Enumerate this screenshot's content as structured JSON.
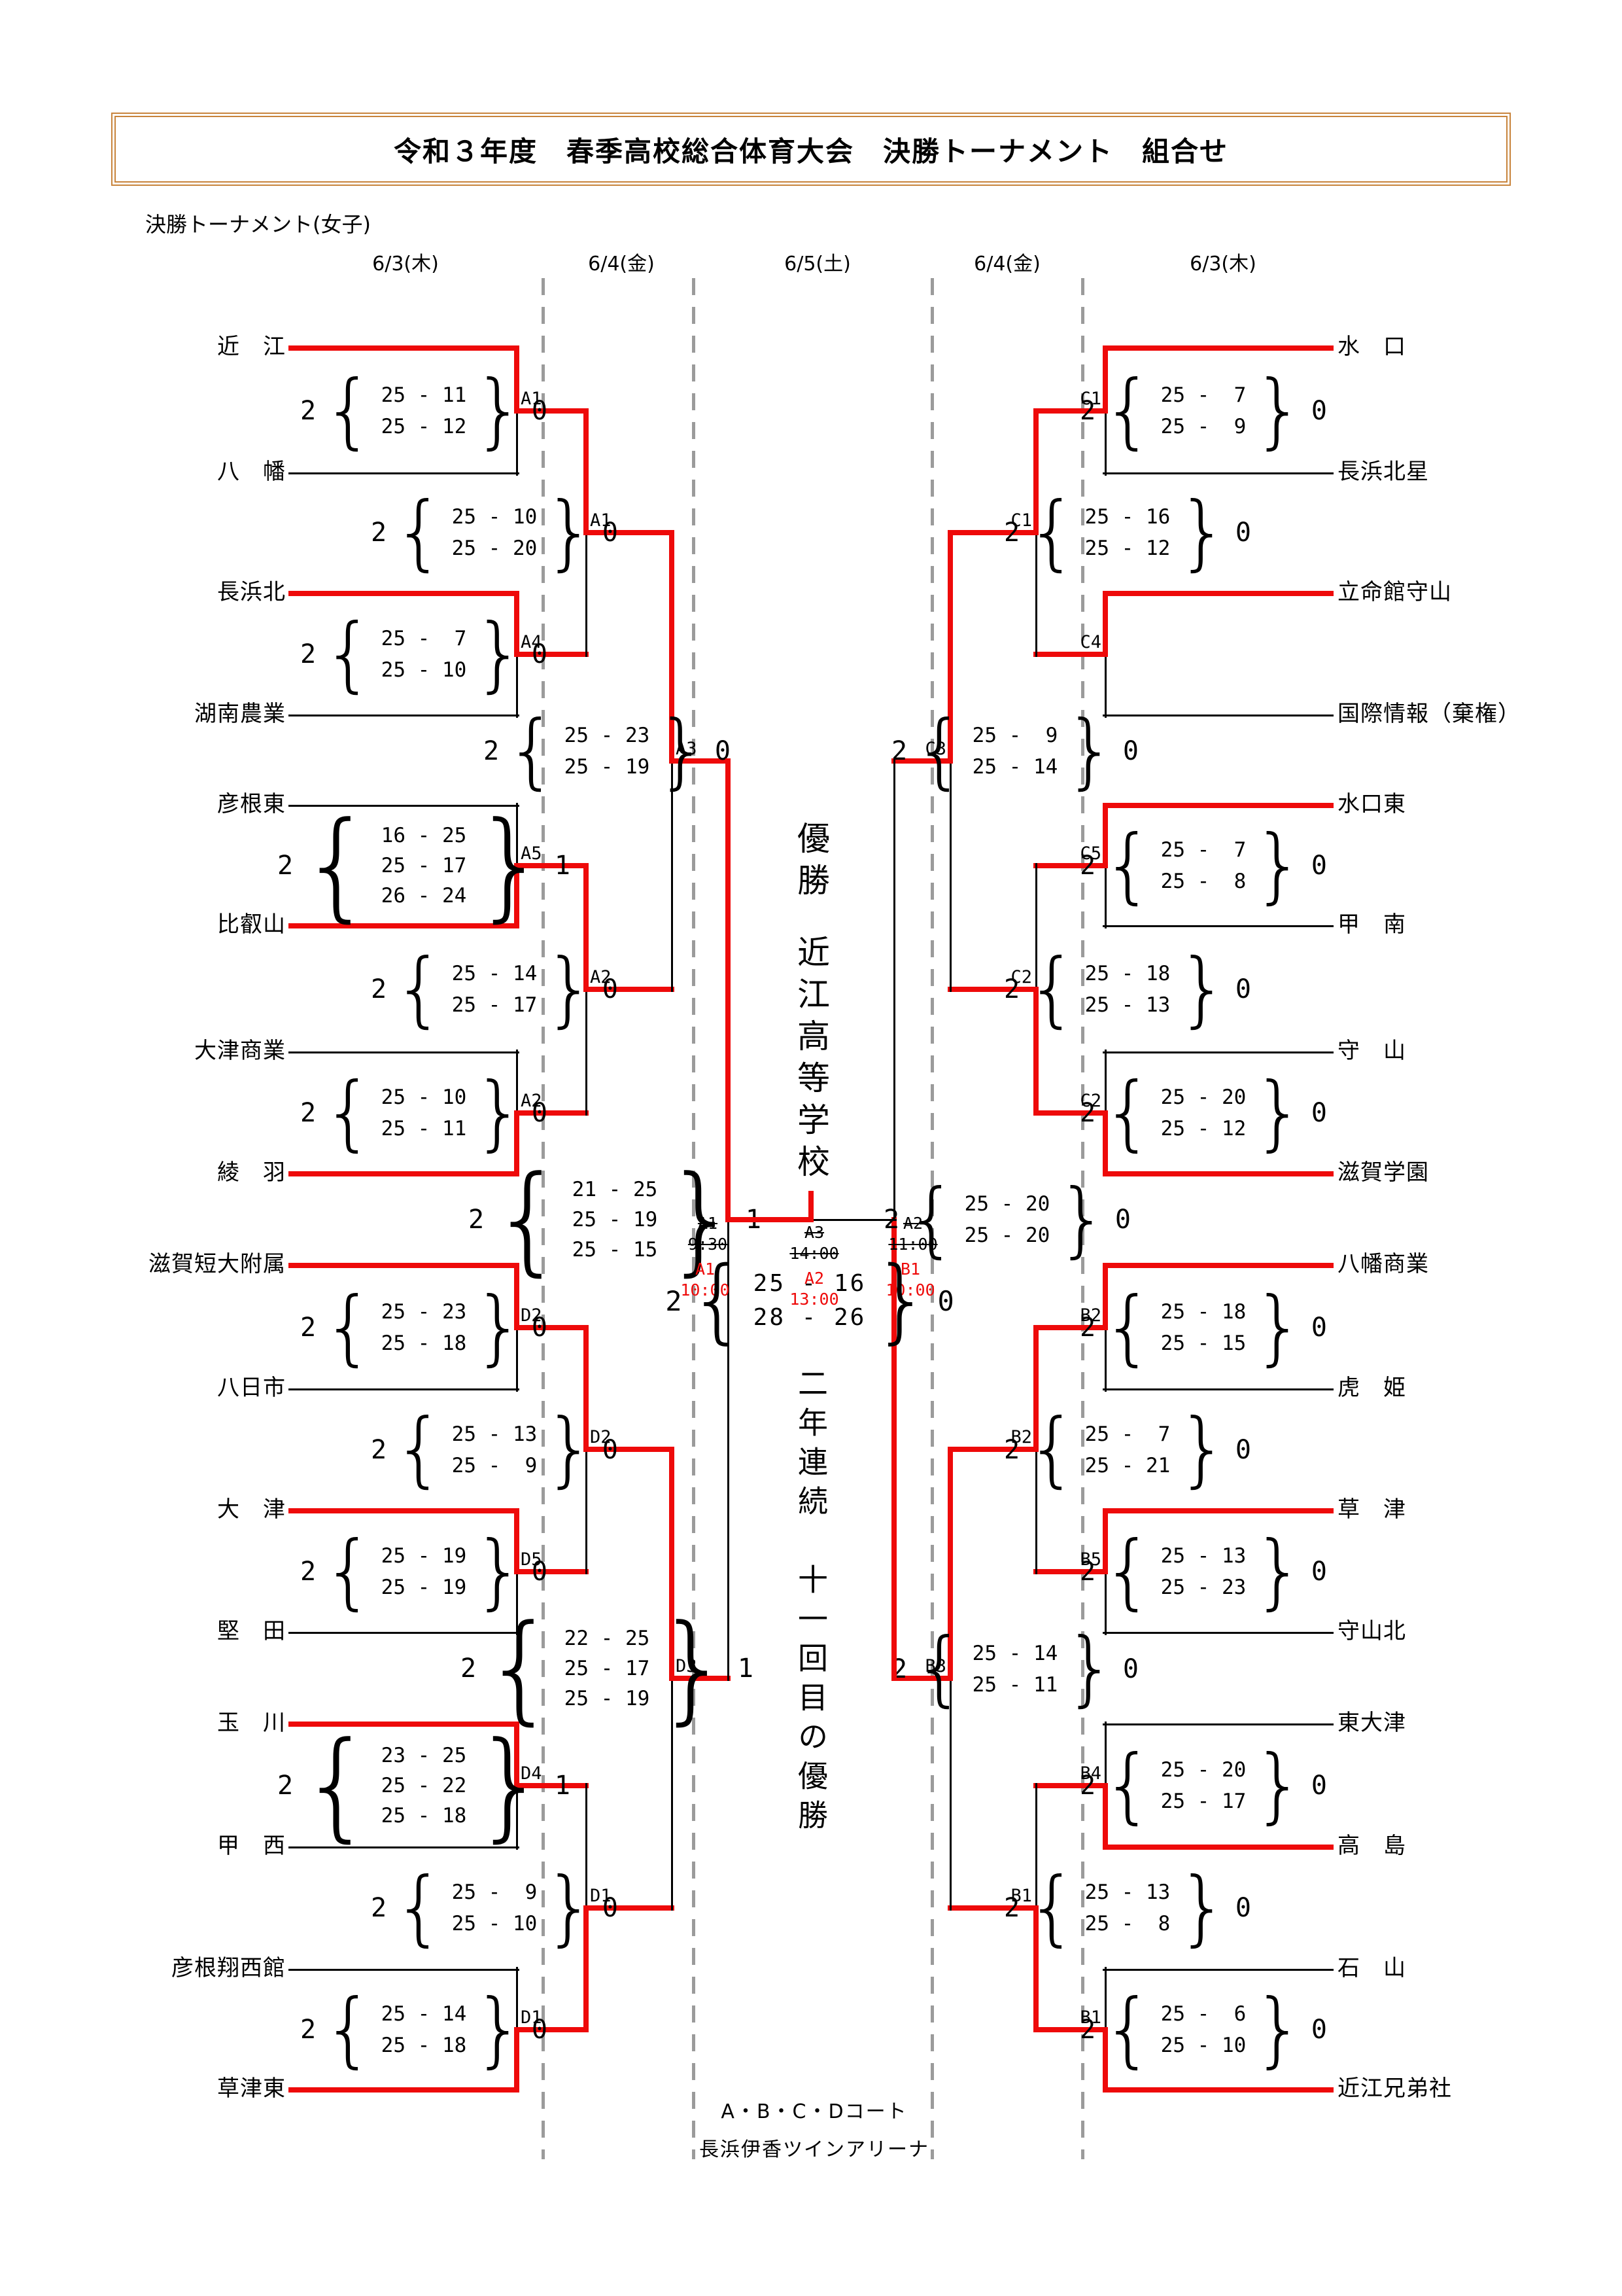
{
  "header": {
    "title": "令和３年度　春季高校総合体育大会　決勝トーナメント　組合せ",
    "subtitle": "決勝トーナメント(女子)",
    "dates": [
      "6/3(木)",
      "6/4(金)",
      "6/5(土)",
      "6/4(金)",
      "6/3(木)"
    ]
  },
  "center": {
    "champion_label": "優勝",
    "champion_name": "近江高等学校",
    "note": "二年連続　十一回目の優勝"
  },
  "footer": {
    "courts": "A・B・C・Dコート",
    "arena": "長浜伊香ツインアリーナ"
  },
  "colors": {
    "win_path": "#ee0a0a",
    "line": "#000000",
    "dashed": "#9b9b9b",
    "title_border": "#c8843c"
  },
  "bracket": {
    "left": {
      "teams": [
        "近　江",
        "八　幡",
        "長浜北",
        "湖南農業",
        "彦根東",
        "比叡山",
        "大津商業",
        "綾　羽",
        "滋賀短大附属",
        "八日市",
        "大　津",
        "堅　田",
        "玉　川",
        "甲　西",
        "彦根翔西館",
        "草津東"
      ],
      "r1": [
        {
          "code": "A1",
          "sets": [
            "2",
            "0"
          ],
          "rows": [
            "25 - 11",
            "25 - 12"
          ],
          "winner": "top"
        },
        {
          "code": "A4",
          "sets": [
            "2",
            "0"
          ],
          "rows": [
            "25 -  7",
            "25 - 10"
          ],
          "winner": "top"
        },
        {
          "code": "A5",
          "sets": [
            "2",
            "1"
          ],
          "rows": [
            "16 - 25",
            "25 - 17",
            "26 - 24"
          ],
          "winner": "bottom"
        },
        {
          "code": "A2",
          "sets": [
            "2",
            "0"
          ],
          "rows": [
            "25 - 10",
            "25 - 11"
          ],
          "winner": "bottom"
        },
        {
          "code": "D2",
          "sets": [
            "2",
            "0"
          ],
          "rows": [
            "25 - 23",
            "25 - 18"
          ],
          "winner": "top"
        },
        {
          "code": "D5",
          "sets": [
            "2",
            "0"
          ],
          "rows": [
            "25 - 19",
            "25 - 19"
          ],
          "winner": "top"
        },
        {
          "code": "D4",
          "sets": [
            "2",
            "1"
          ],
          "rows": [
            "23 - 25",
            "25 - 22",
            "25 - 18"
          ],
          "winner": "top"
        },
        {
          "code": "D1",
          "sets": [
            "2",
            "0"
          ],
          "rows": [
            "25 - 14",
            "25 - 18"
          ],
          "winner": "bottom"
        }
      ],
      "r2": [
        {
          "code": "A1",
          "sets": [
            "2",
            "0"
          ],
          "rows": [
            "25 - 10",
            "25 - 20"
          ],
          "winner": "top"
        },
        {
          "code": "A2",
          "sets": [
            "2",
            "0"
          ],
          "rows": [
            "25 - 14",
            "25 - 17"
          ],
          "winner": "top"
        },
        {
          "code": "D2",
          "sets": [
            "2",
            "0"
          ],
          "rows": [
            "25 - 13",
            "25 -  9"
          ],
          "winner": "top"
        },
        {
          "code": "D1",
          "sets": [
            "2",
            "0"
          ],
          "rows": [
            "25 -  9",
            "25 - 10"
          ],
          "winner": "bottom"
        }
      ],
      "r3": [
        {
          "code": "A3",
          "sets": [
            "2",
            "0"
          ],
          "rows": [
            "25 - 23",
            "25 - 19"
          ],
          "winner": "top"
        },
        {
          "code": "D3",
          "sets": [
            "2",
            "1"
          ],
          "rows": [
            "22 - 25",
            "25 - 17",
            "25 - 19"
          ],
          "winner": "top"
        }
      ],
      "sf": {
        "sets": [
          "2",
          "1"
        ],
        "rows": [
          "21 - 25",
          "25 - 19",
          "25 - 15"
        ],
        "winner": "top",
        "court_planned": "A1\n9:30",
        "court_actual": "A1\n10:00"
      }
    },
    "right": {
      "teams": [
        "水　口",
        "長浜北星",
        "立命館守山",
        "国際情報（棄権）",
        "水口東",
        "甲　南",
        "守　山",
        "滋賀学園",
        "八幡商業",
        "虎　姫",
        "草　津",
        "守山北",
        "東大津",
        "高　島",
        "石　山",
        "近江兄弟社"
      ],
      "r1": [
        {
          "code": "C1",
          "sets": [
            "2",
            "0"
          ],
          "rows": [
            "25 -  7",
            "25 -  9"
          ],
          "winner": "top"
        },
        {
          "code": "C4",
          "sets": null,
          "rows": [],
          "winner": "top"
        },
        {
          "code": "C5",
          "sets": [
            "2",
            "0"
          ],
          "rows": [
            "25 -  7",
            "25 -  8"
          ],
          "winner": "top"
        },
        {
          "code": "C2",
          "sets": [
            "2",
            "0"
          ],
          "rows": [
            "25 - 20",
            "25 - 12"
          ],
          "winner": "bottom"
        },
        {
          "code": "B2",
          "sets": [
            "2",
            "0"
          ],
          "rows": [
            "25 - 18",
            "25 - 15"
          ],
          "winner": "top"
        },
        {
          "code": "B5",
          "sets": [
            "2",
            "0"
          ],
          "rows": [
            "25 - 13",
            "25 - 23"
          ],
          "winner": "top"
        },
        {
          "code": "B4",
          "sets": [
            "2",
            "0"
          ],
          "rows": [
            "25 - 20",
            "25 - 17"
          ],
          "winner": "bottom"
        },
        {
          "code": "B1",
          "sets": [
            "2",
            "0"
          ],
          "rows": [
            "25 -  6",
            "25 - 10"
          ],
          "winner": "bottom"
        }
      ],
      "r2": [
        {
          "code": "C1",
          "sets": [
            "2",
            "0"
          ],
          "rows": [
            "25 - 16",
            "25 - 12"
          ],
          "winner": "top"
        },
        {
          "code": "C2",
          "sets": [
            "2",
            "0"
          ],
          "rows": [
            "25 - 18",
            "25 - 13"
          ],
          "winner": "bottom"
        },
        {
          "code": "B2",
          "sets": [
            "2",
            "0"
          ],
          "rows": [
            "25 -  7",
            "25 - 21"
          ],
          "winner": "top"
        },
        {
          "code": "B1",
          "sets": [
            "2",
            "0"
          ],
          "rows": [
            "25 - 13",
            "25 -  8"
          ],
          "winner": "bottom"
        }
      ],
      "r3": [
        {
          "code": "C3",
          "sets": [
            "2",
            "0"
          ],
          "rows": [
            "25 -  9",
            "25 - 14"
          ],
          "winner": "top"
        },
        {
          "code": "B3",
          "sets": [
            "2",
            "0"
          ],
          "rows": [
            "25 - 14",
            "25 - 11"
          ],
          "winner": "top"
        }
      ],
      "sf": {
        "sets": [
          "2",
          "0"
        ],
        "rows": [
          "25 - 20",
          "25 - 20"
        ],
        "winner": "bottom",
        "court_planned": "A2\n11:00",
        "court_actual": "B1\n10:00"
      }
    },
    "final": {
      "sets": [
        "2",
        "0"
      ],
      "rows": [
        "25 - 16",
        "28 - 26"
      ],
      "winner": "left",
      "court_planned": "A3\n14:00",
      "court_actual": "A2\n13:00"
    }
  }
}
